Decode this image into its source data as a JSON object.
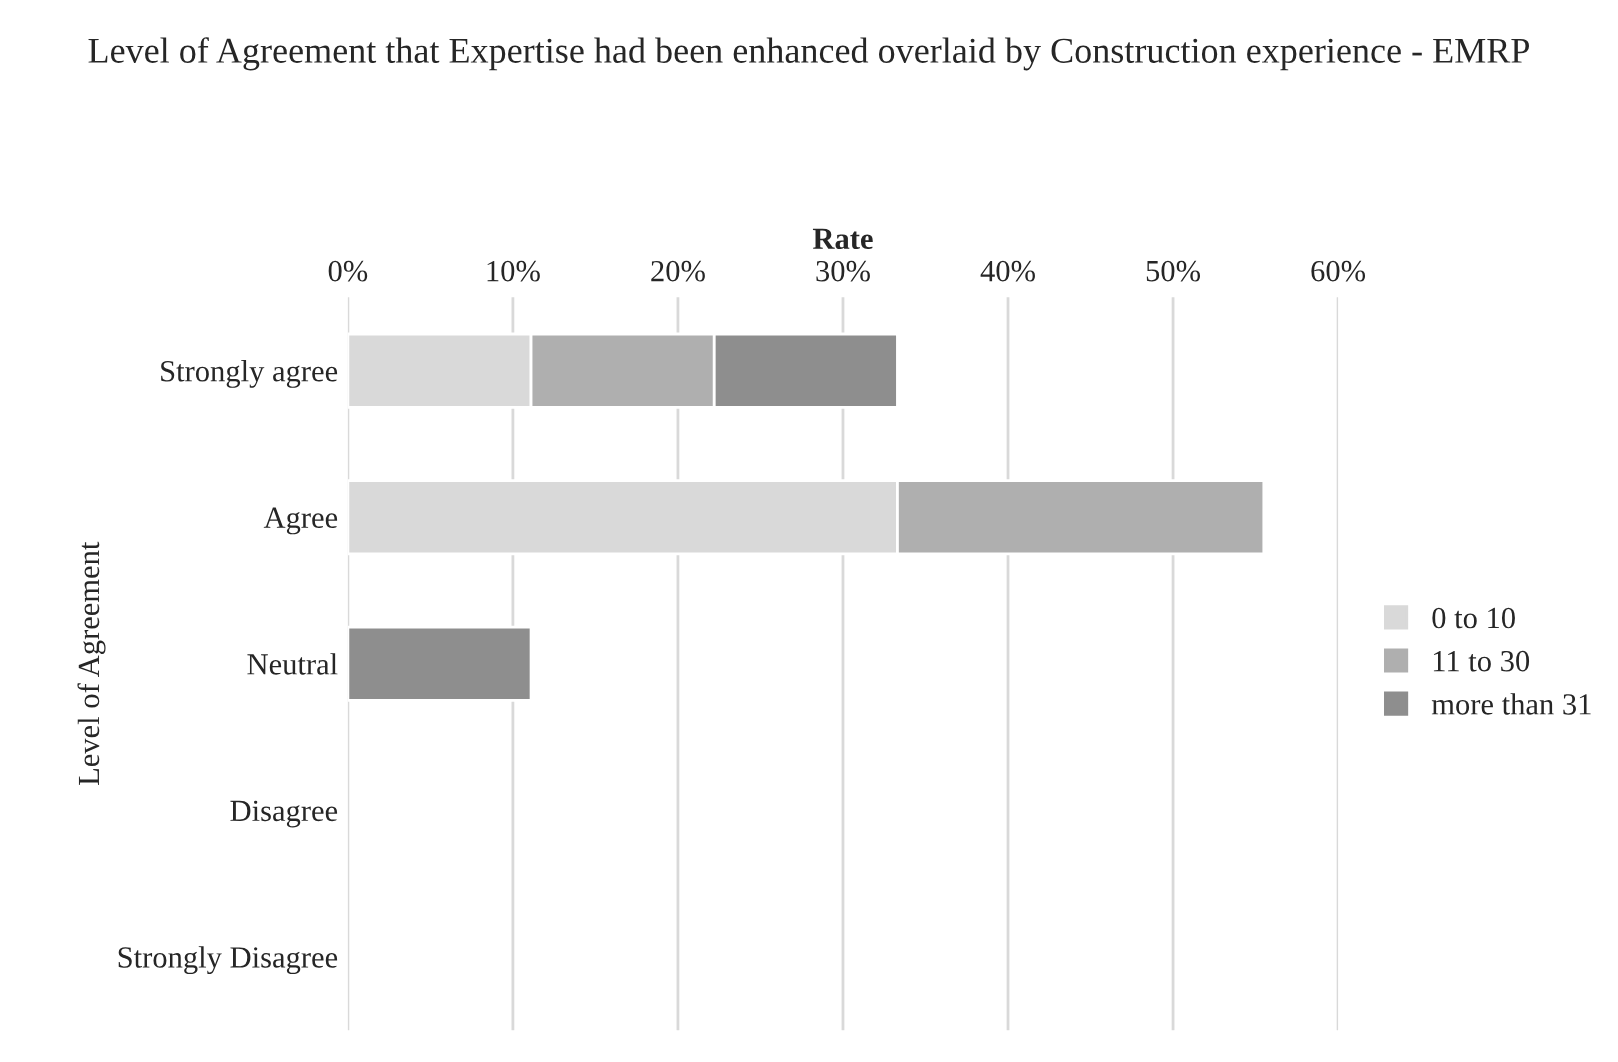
{
  "chart_data": {
    "type": "bar",
    "orientation": "horizontal",
    "stacked": true,
    "title": "Level of Agreement that Expertise had been enhanced overlaid by Construction experience - EMRP",
    "xlabel": "Rate",
    "ylabel": "Level of Agreement",
    "categories": [
      "Strongly agree",
      "Agree",
      "Neutral",
      "Disagree",
      "Strongly Disagree"
    ],
    "series": [
      {
        "name": "0 to 10",
        "color": "#d9d9d9",
        "values": [
          11.1,
          33.3,
          null,
          null,
          null
        ]
      },
      {
        "name": "11 to 30",
        "color": "#afafaf",
        "values": [
          11.1,
          22.2,
          null,
          null,
          null
        ]
      },
      {
        "name": "more than 31",
        "color": "#8e8e8e",
        "values": [
          11.1,
          null,
          11.1,
          null,
          null
        ]
      }
    ],
    "xlim": [
      0,
      60
    ],
    "xticks": [
      {
        "value": 0,
        "label": "0%"
      },
      {
        "value": 10,
        "label": "10%"
      },
      {
        "value": 20,
        "label": "20%"
      },
      {
        "value": 30,
        "label": "30%"
      },
      {
        "value": 40,
        "label": "40%"
      },
      {
        "value": 50,
        "label": "50%"
      },
      {
        "value": 60,
        "label": "60%"
      }
    ],
    "grid": "x",
    "legend": "right"
  }
}
